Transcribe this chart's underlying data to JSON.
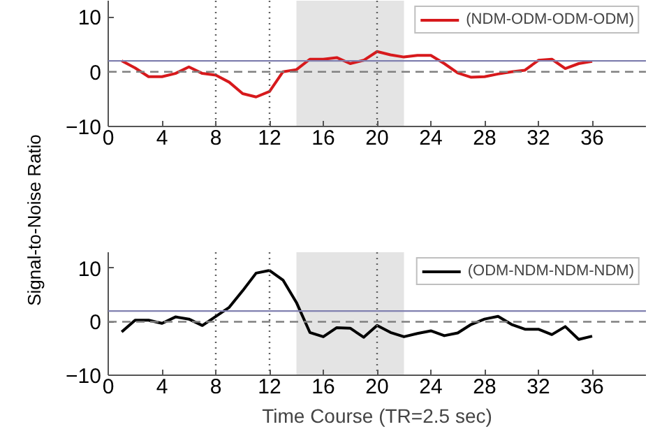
{
  "chart_data": [
    {
      "type": "line",
      "ylabel": "Signal-to-Noise Ratio",
      "x": [
        1,
        2,
        3,
        4,
        5,
        6,
        7,
        8,
        9,
        10,
        11,
        12,
        13,
        14,
        15,
        16,
        17,
        18,
        19,
        20,
        21,
        22,
        23,
        24,
        25,
        26,
        27,
        28,
        29,
        30,
        31,
        32,
        33,
        34,
        35,
        36
      ],
      "series": [
        {
          "name": "(NDM-ODM-ODM-ODM)",
          "color": "#d7191c",
          "values": [
            2.0,
            0.7,
            -0.9,
            -0.9,
            -0.3,
            0.9,
            -0.3,
            -0.6,
            -1.9,
            -4.0,
            -4.6,
            -3.6,
            0,
            0.4,
            2.3,
            2.3,
            2.6,
            1.5,
            2.1,
            3.7,
            3.1,
            2.7,
            3.0,
            3.0,
            1.5,
            -0.2,
            -1.0,
            -0.9,
            -0.4,
            0,
            0.3,
            2.1,
            2.3,
            0.6,
            1.5,
            1.9
          ]
        }
      ],
      "xlim": [
        0,
        40
      ],
      "ylim": [
        -10,
        13
      ],
      "xticks": [
        0,
        4,
        8,
        12,
        16,
        20,
        24,
        28,
        32,
        36
      ],
      "yticks": [
        -10,
        0,
        10
      ],
      "legend": "top right",
      "ref_lines": [
        {
          "axis": "y",
          "value": 2,
          "color": "#8080b0",
          "line_style": "solid"
        },
        {
          "axis": "y",
          "value": 0,
          "color": "#808080",
          "line_style": "dashed"
        },
        {
          "axis": "x",
          "value": 8,
          "color": "#606060",
          "line_style": "dotted"
        },
        {
          "axis": "x",
          "value": 12,
          "color": "#606060",
          "line_style": "dotted"
        },
        {
          "axis": "x",
          "value": 20,
          "color": "#606060",
          "line_style": "dotted"
        }
      ],
      "bands": [
        {
          "axis": "x",
          "from": 14,
          "to": 22,
          "color": "#e4e4e4"
        }
      ]
    },
    {
      "type": "line",
      "xlabel": "Time Course (TR=2.5 sec)",
      "x": [
        1,
        2,
        3,
        4,
        5,
        6,
        7,
        8,
        9,
        10,
        11,
        12,
        13,
        14,
        15,
        16,
        17,
        18,
        19,
        20,
        21,
        22,
        23,
        24,
        25,
        26,
        27,
        28,
        29,
        30,
        31,
        32,
        33,
        34,
        35,
        36
      ],
      "series": [
        {
          "name": "(ODM-NDM-NDM-NDM)",
          "color": "#000000",
          "values": [
            -1.9,
            0.3,
            0.3,
            -0.3,
            0.9,
            0.5,
            -0.7,
            1.0,
            2.7,
            5.8,
            9.1,
            9.6,
            7.8,
            3.6,
            -2.0,
            -2.8,
            -1.1,
            -1.2,
            -2.9,
            -0.7,
            -2.0,
            -2.8,
            -2.2,
            -1.7,
            -2.6,
            -2.1,
            -0.5,
            0.5,
            1.0,
            -0.5,
            -1.4,
            -1.4,
            -2.4,
            -0.9,
            -3.3,
            -2.7
          ]
        }
      ],
      "xlim": [
        0,
        40
      ],
      "ylim": [
        -10,
        13
      ],
      "xticks": [
        0,
        4,
        8,
        12,
        16,
        20,
        24,
        28,
        32,
        36
      ],
      "yticks": [
        -10,
        0,
        10
      ],
      "legend": "top right",
      "ref_lines": [
        {
          "axis": "y",
          "value": 2,
          "color": "#8080b0",
          "line_style": "solid"
        },
        {
          "axis": "y",
          "value": 0,
          "color": "#808080",
          "line_style": "dashed"
        },
        {
          "axis": "x",
          "value": 8,
          "color": "#606060",
          "line_style": "dotted"
        },
        {
          "axis": "x",
          "value": 12,
          "color": "#606060",
          "line_style": "dotted"
        },
        {
          "axis": "x",
          "value": 20,
          "color": "#606060",
          "line_style": "dotted"
        }
      ],
      "bands": [
        {
          "axis": "x",
          "from": 14,
          "to": 22,
          "color": "#e4e4e4"
        }
      ]
    }
  ]
}
